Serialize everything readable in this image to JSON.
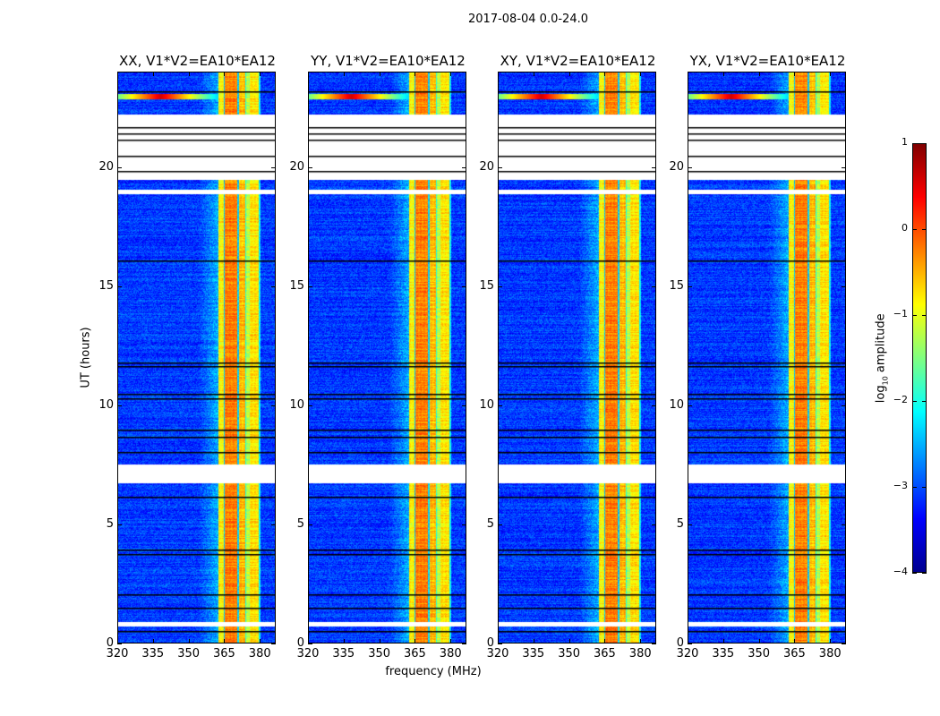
{
  "chart_data": {
    "type": "heatmap",
    "title": "2017-08-04 0.0-24.0",
    "xlabel": "frequency (MHz)",
    "ylabel": "UT (hours)",
    "xlim": [
      320,
      386.7
    ],
    "ylim": [
      0,
      24
    ],
    "xticks": [
      "320",
      "335",
      "350",
      "365",
      "380"
    ],
    "xtick_values": [
      320,
      335,
      350,
      365,
      380
    ],
    "yticks": [
      "0",
      "5",
      "10",
      "15",
      "20"
    ],
    "ytick_values": [
      0,
      5,
      10,
      15,
      20
    ],
    "panels": [
      {
        "title": "XX, V1*V2=EA10*EA12",
        "seed": 11
      },
      {
        "title": "YY, V1*V2=EA10*EA12",
        "seed": 23
      },
      {
        "title": "XY, V1*V2=EA10*EA12",
        "seed": 37
      },
      {
        "title": "YX, V1*V2=EA10*EA12",
        "seed": 53
      }
    ],
    "colorbar": {
      "label_prefix": "log",
      "label_sub": "10",
      "label_suffix": " amplitude",
      "range": [
        -4,
        1
      ],
      "ticks": [
        "1",
        "0",
        "−1",
        "−2",
        "−3",
        "−4"
      ],
      "tick_values": [
        1,
        0,
        -1,
        -2,
        -3,
        -4
      ],
      "colormap": "jet"
    },
    "background_level": -3.1,
    "rfi_bands_mhz": [
      {
        "range": [
          362.5,
          364.6
        ],
        "level": -0.9
      },
      {
        "range": [
          364.6,
          365.0
        ],
        "level": -2.4
      },
      {
        "range": [
          365.0,
          370.6
        ],
        "level": -0.3
      },
      {
        "range": [
          370.6,
          371.2
        ],
        "level": -2.4
      },
      {
        "range": [
          371.2,
          374.0
        ],
        "level": -0.6
      },
      {
        "range": [
          374.0,
          374.5
        ],
        "level": -1.9
      },
      {
        "range": [
          374.5,
          376.0
        ],
        "level": -1.3
      },
      {
        "range": [
          376.0,
          379.6
        ],
        "level": -0.8
      },
      {
        "range": [
          379.6,
          380.3
        ],
        "level": -2.2
      }
    ],
    "flagged_hours": [
      [
        19.5,
        22.23
      ],
      [
        18.89,
        19.07
      ],
      [
        6.72,
        7.51
      ],
      [
        0.71,
        0.9
      ]
    ],
    "boundary_hours": [
      23.21,
      21.7,
      21.44,
      21.18,
      20.5,
      19.86,
      16.1,
      11.79,
      11.64,
      10.48,
      10.29,
      8.98,
      8.67,
      8.04,
      6.16,
      3.91,
      3.72,
      2.03,
      1.46,
      0.49
    ],
    "point_source": {
      "freq_mhz": 338,
      "hour": 23.0,
      "level": 0.6
    }
  }
}
